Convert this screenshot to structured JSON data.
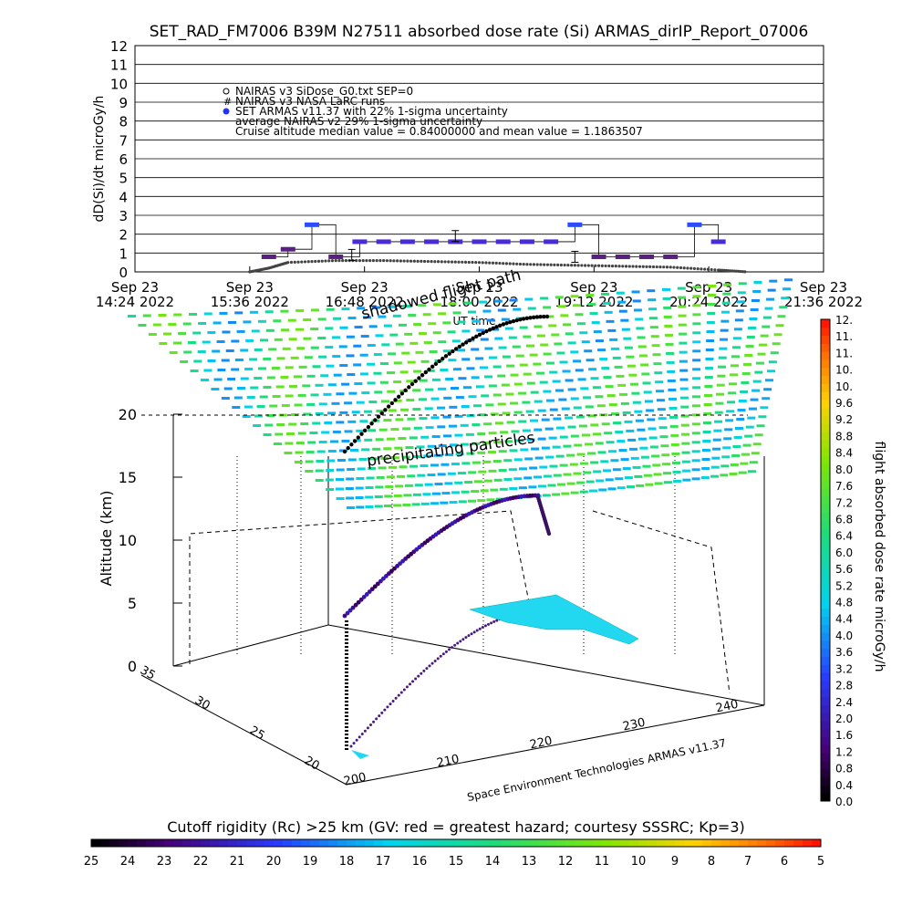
{
  "title": "SET_RAD_FM7006  B39M N27511 absorbed dose rate (Si) ARMAS_dirIP_Report_07006",
  "chart_data": [
    {
      "type": "scatter",
      "ylabel": "dD(Si)/dt microGy/h",
      "xlabel": "UT time",
      "ylim": [
        0,
        12
      ],
      "yticks": [
        "0",
        "1",
        "2",
        "3",
        "4",
        "5",
        "6",
        "7",
        "8",
        "9",
        "10",
        "11",
        "12"
      ],
      "xticks": [
        {
          "day": "Sep 23",
          "time": "14:24  2022"
        },
        {
          "day": "Sep 23",
          "time": "15:36  2022"
        },
        {
          "day": "Sep 23",
          "time": "16:48  2022"
        },
        {
          "day": "Sep 23",
          "time": "18:00  2022"
        },
        {
          "day": "Sep 23",
          "time": "19:12  2022"
        },
        {
          "day": "Sep 23",
          "time": "20:24  2022"
        },
        {
          "day": "Sep 23",
          "time": "21:36  2022"
        }
      ],
      "legend": [
        "NAIRAS v3 SiDose_G0.txt SEP=0",
        "NAIRAS v3 NASA LaRC runs",
        "SET ARMAS v11.37 with 22% 1-sigma uncertainty",
        "average NAIRAS v2 29% 1-sigma uncertainty",
        "Cruise altitude median value =  0.84000000 and mean value =   1.1863507"
      ],
      "grid": true,
      "series": [
        {
          "name": "SET ARMAS v11.37",
          "color": "#2233ff",
          "x": [
            "15:48",
            "16:00",
            "16:15",
            "16:30",
            "16:45",
            "17:00",
            "17:15",
            "17:30",
            "17:45",
            "18:00",
            "18:15",
            "18:30",
            "18:45",
            "19:00",
            "19:15",
            "19:30",
            "19:45",
            "20:00",
            "20:15",
            "20:30"
          ],
          "y": [
            0.8,
            1.2,
            2.5,
            0.8,
            1.6,
            1.6,
            1.6,
            1.6,
            1.6,
            1.6,
            1.6,
            1.6,
            1.6,
            2.5,
            0.8,
            0.8,
            0.8,
            0.8,
            2.5,
            1.6
          ]
        },
        {
          "name": "NAIRAS v3 SiDose_G0.txt SEP=0",
          "color": "#000000",
          "x": [
            "15:36",
            "15:48",
            "16:00",
            "16:30",
            "17:00",
            "17:30",
            "18:00",
            "18:30",
            "19:00",
            "19:30",
            "20:00",
            "20:30",
            "20:48"
          ],
          "y": [
            0.0,
            0.2,
            0.5,
            0.6,
            0.6,
            0.55,
            0.5,
            0.4,
            0.35,
            0.3,
            0.25,
            0.1,
            0.0
          ]
        }
      ]
    },
    {
      "type": "scatter3d",
      "title": "Cutoff rigidity (Rc) >25 km (GV: red = greatest hazard; courtesy SSSRC; Kp=3)",
      "zlabel": "Altitude (km)",
      "zticks": [
        "0",
        "5",
        "10",
        "15",
        "20"
      ],
      "xticks": [
        "200",
        "210",
        "220",
        "230",
        "240"
      ],
      "yticks": [
        "20",
        "25",
        "30",
        "35"
      ],
      "annotations": [
        "precipitating particles",
        "shadowed flight path"
      ],
      "rigidity_colorbar": [
        "25",
        "24",
        "23",
        "22",
        "21",
        "20",
        "19",
        "18",
        "17",
        "16",
        "15",
        "14",
        "13",
        "12",
        "11",
        "10",
        "9",
        "8",
        "7",
        "6",
        "5"
      ],
      "dose_colorbar_ticks": [
        "0.0",
        "0.4",
        "0.8",
        "1.2",
        "1.6",
        "2.0",
        "2.4",
        "2.8",
        "3.2",
        "3.6",
        "4.0",
        "4.4",
        "4.8",
        "5.2",
        "5.6",
        "6.0",
        "6.4",
        "6.8",
        "7.2",
        "7.6",
        "8.0",
        "8.4",
        "8.8",
        "9.2",
        "9.6",
        "10.",
        "10.",
        "11.",
        "11.",
        "12."
      ],
      "dose_colorbar_label": "flight absorbed dose rate microGy/h",
      "credit": "Space Environment Technologies ARMAS v11.37"
    }
  ]
}
